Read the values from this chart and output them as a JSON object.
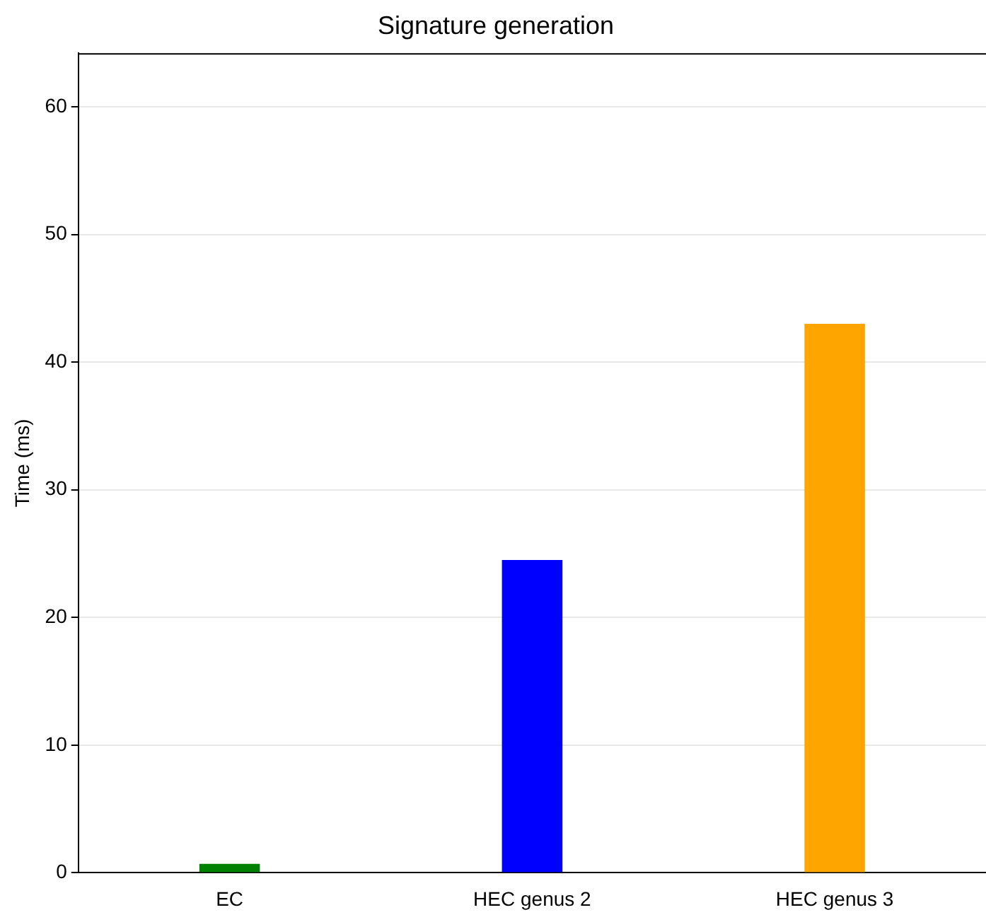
{
  "chart_data": {
    "type": "bar",
    "title": "Signature generation",
    "ylabel": "Time (ms)",
    "categories": [
      "EC",
      "HEC genus 2",
      "HEC genus 3"
    ],
    "values": [
      0.7,
      24.5,
      43
    ],
    "colors": [
      "#008000",
      "#0000ff",
      "#ffa500"
    ],
    "ylim": [
      0,
      64.2
    ],
    "yticks": [
      0,
      10,
      20,
      30,
      40,
      50,
      60
    ],
    "grid": "y",
    "legend": false
  }
}
